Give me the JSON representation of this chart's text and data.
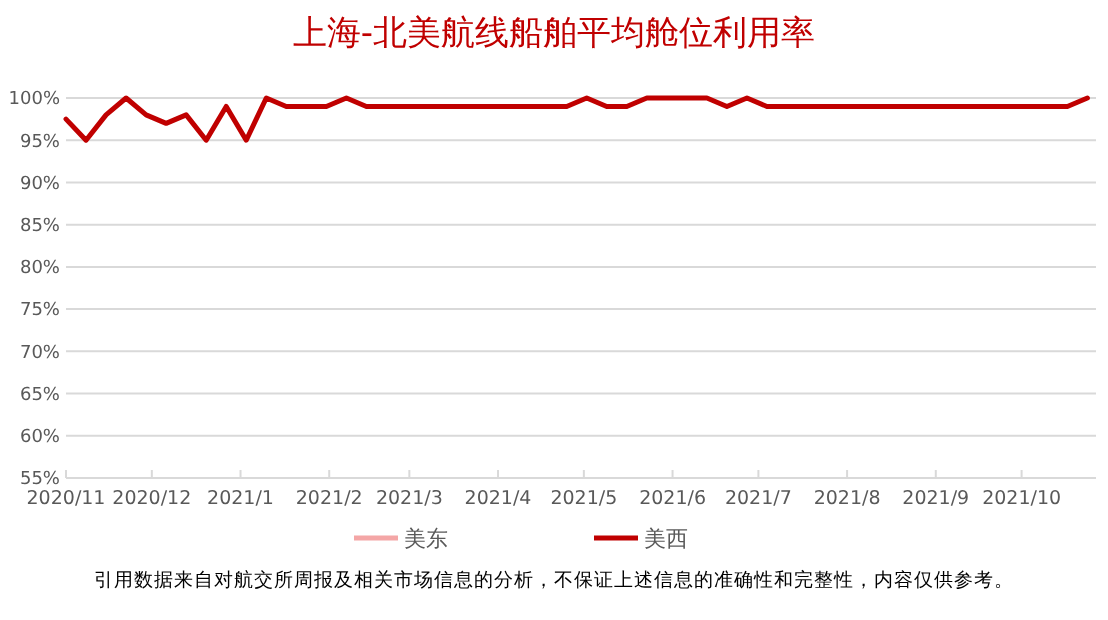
{
  "chart_data": {
    "type": "line",
    "title": "上海-北美航线船舶平均舱位利用率",
    "x": [
      "2020-11-01",
      "2020-11-08",
      "2020-11-15",
      "2020-11-22",
      "2020-11-29",
      "2020-12-06",
      "2020-12-13",
      "2020-12-20",
      "2020-12-27",
      "2021-01-03",
      "2021-01-10",
      "2021-01-17",
      "2021-01-24",
      "2021-01-31",
      "2021-02-07",
      "2021-02-14",
      "2021-02-21",
      "2021-02-28",
      "2021-03-07",
      "2021-03-14",
      "2021-03-21",
      "2021-03-28",
      "2021-04-04",
      "2021-04-11",
      "2021-04-18",
      "2021-04-25",
      "2021-05-02",
      "2021-05-09",
      "2021-05-16",
      "2021-05-23",
      "2021-05-30",
      "2021-06-06",
      "2021-06-13",
      "2021-06-20",
      "2021-06-27",
      "2021-07-04",
      "2021-07-11",
      "2021-07-18",
      "2021-07-25",
      "2021-08-01",
      "2021-08-08",
      "2021-08-15",
      "2021-08-22",
      "2021-08-29",
      "2021-09-05",
      "2021-09-12",
      "2021-09-19",
      "2021-09-26",
      "2021-10-03",
      "2021-10-10",
      "2021-10-17",
      "2021-10-24"
    ],
    "series": [
      {
        "name": "美东",
        "color": "#f4a6a6",
        "values": [
          null,
          null,
          null,
          null,
          null,
          null,
          null,
          null,
          null,
          null,
          null,
          null,
          null,
          null,
          null,
          null,
          null,
          null,
          null,
          null,
          null,
          null,
          null,
          null,
          null,
          null,
          null,
          null,
          null,
          null,
          null,
          null,
          null,
          null,
          null,
          null,
          null,
          null,
          null,
          null,
          null,
          null,
          null,
          null,
          null,
          null,
          null,
          null,
          null,
          null,
          null,
          null
        ]
      },
      {
        "name": "美西",
        "color": "#c00000",
        "values": [
          97.5,
          95,
          98,
          100,
          98,
          97,
          98,
          95,
          99,
          95,
          100,
          99,
          99,
          99,
          100,
          99,
          99,
          99,
          99,
          99,
          99,
          99,
          99,
          99,
          99,
          99,
          100,
          99,
          99,
          100,
          100,
          100,
          100,
          99,
          100,
          99,
          99,
          99,
          99,
          99,
          99,
          99,
          99,
          99,
          99,
          99,
          99,
          99,
          99,
          99,
          99,
          100
        ]
      }
    ],
    "xlim": [
      "2020-11-01",
      "2021-10-27"
    ],
    "xticks": [
      {
        "value": "2020-11-01",
        "label": "2020/11"
      },
      {
        "value": "2020-12-01",
        "label": "2020/12"
      },
      {
        "value": "2021-01-01",
        "label": "2021/1"
      },
      {
        "value": "2021-02-01",
        "label": "2021/2"
      },
      {
        "value": "2021-03-01",
        "label": "2021/3"
      },
      {
        "value": "2021-04-01",
        "label": "2021/4"
      },
      {
        "value": "2021-05-01",
        "label": "2021/5"
      },
      {
        "value": "2021-06-01",
        "label": "2021/6"
      },
      {
        "value": "2021-07-01",
        "label": "2021/7"
      },
      {
        "value": "2021-08-01",
        "label": "2021/8"
      },
      {
        "value": "2021-09-01",
        "label": "2021/9"
      },
      {
        "value": "2021-10-01",
        "label": "2021/10"
      }
    ],
    "ylim": [
      55,
      100
    ],
    "yticks": [
      {
        "value": 55,
        "label": "55%"
      },
      {
        "value": 60,
        "label": "60%"
      },
      {
        "value": 65,
        "label": "65%"
      },
      {
        "value": 70,
        "label": "70%"
      },
      {
        "value": 75,
        "label": "75%"
      },
      {
        "value": 80,
        "label": "80%"
      },
      {
        "value": 85,
        "label": "85%"
      },
      {
        "value": 90,
        "label": "90%"
      },
      {
        "value": 95,
        "label": "95%"
      },
      {
        "value": 100,
        "label": "100%"
      }
    ],
    "grid": "y",
    "legend": "bottom",
    "marker": "none",
    "line_style": "solid",
    "annotations": [
      "引用数据来自对航交所周报及相关市场信息的分析，不保证上述信息的准确性和完整性，内容仅供参考。"
    ]
  }
}
